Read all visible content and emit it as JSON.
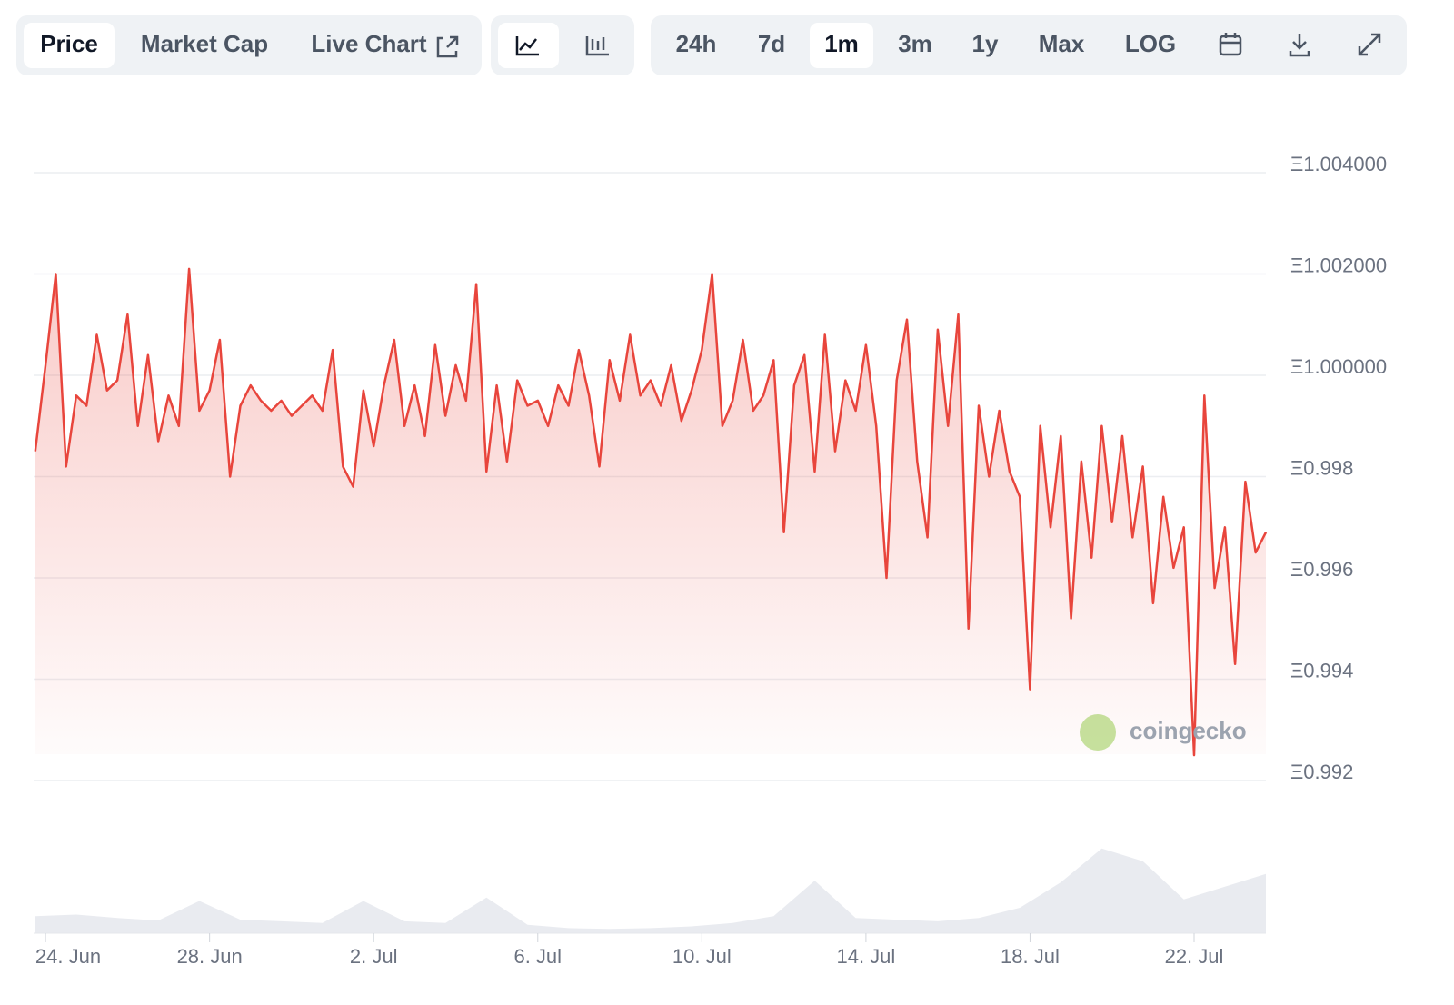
{
  "toolbar": {
    "tabs": [
      "Price",
      "Market Cap",
      "Live Chart"
    ],
    "ranges": [
      "24h",
      "7d",
      "1m",
      "3m",
      "1y",
      "Max",
      "LOG"
    ],
    "active_tab": "Price",
    "active_range": "1m"
  },
  "chart_data": {
    "type": "line",
    "color": "#e8453c",
    "x": [
      -0.25,
      0,
      0.25,
      0.5,
      0.75,
      1,
      1.25,
      1.5,
      1.75,
      2,
      2.25,
      2.5,
      2.75,
      3,
      3.25,
      3.5,
      3.75,
      4,
      4.25,
      4.5,
      4.75,
      5,
      5.25,
      5.5,
      5.75,
      6,
      6.25,
      6.5,
      6.75,
      7,
      7.25,
      7.5,
      7.75,
      8,
      8.25,
      8.5,
      8.75,
      9,
      9.25,
      9.5,
      9.75,
      10,
      10.25,
      10.5,
      10.75,
      11,
      11.25,
      11.5,
      11.75,
      12,
      12.25,
      12.5,
      12.75,
      13,
      13.25,
      13.5,
      13.75,
      14,
      14.25,
      14.5,
      14.75,
      15,
      15.25,
      15.5,
      15.75,
      16,
      16.25,
      16.5,
      16.75,
      17,
      17.25,
      17.5,
      17.75,
      18,
      18.25,
      18.5,
      18.75,
      19,
      19.25,
      19.5,
      19.75,
      20,
      20.25,
      20.5,
      20.75,
      21,
      21.25,
      21.5,
      21.75,
      22,
      22.25,
      22.5,
      22.75,
      23,
      23.25,
      23.5,
      23.75,
      24,
      24.25,
      24.5,
      24.75,
      25,
      25.25,
      25.5,
      25.75,
      26,
      26.25,
      26.5,
      26.75,
      27,
      27.25,
      27.5,
      27.75,
      28,
      28.25,
      28.5,
      28.75,
      29,
      29.25,
      29.5,
      29.75
    ],
    "values": [
      0.9985,
      1.0002,
      1.002,
      0.9982,
      0.9996,
      0.9994,
      1.0008,
      0.9997,
      0.9999,
      1.0012,
      0.999,
      1.0004,
      0.9987,
      0.9996,
      0.999,
      1.0021,
      0.9993,
      0.9997,
      1.0007,
      0.998,
      0.9994,
      0.9998,
      0.9995,
      0.9993,
      0.9995,
      0.9992,
      0.9994,
      0.9996,
      0.9993,
      1.0005,
      0.9982,
      0.9978,
      0.9997,
      0.9986,
      0.9998,
      1.0007,
      0.999,
      0.9998,
      0.9988,
      1.0006,
      0.9992,
      1.0002,
      0.9995,
      1.0018,
      0.9981,
      0.9998,
      0.9983,
      0.9999,
      0.9994,
      0.9995,
      0.999,
      0.9998,
      0.9994,
      1.0005,
      0.9996,
      0.9982,
      1.0003,
      0.9995,
      1.0008,
      0.9996,
      0.9999,
      0.9994,
      1.0002,
      0.9991,
      0.9997,
      1.0005,
      1.002,
      0.999,
      0.9995,
      1.0007,
      0.9993,
      0.9996,
      1.0003,
      0.9969,
      0.9998,
      1.0004,
      0.9981,
      1.0008,
      0.9985,
      0.9999,
      0.9993,
      1.0006,
      0.999,
      0.996,
      0.9999,
      1.0011,
      0.9983,
      0.9968,
      1.0009,
      0.999,
      1.0012,
      0.995,
      0.9994,
      0.998,
      0.9993,
      0.9981,
      0.9976,
      0.9938,
      0.999,
      0.997,
      0.9988,
      0.9952,
      0.9983,
      0.9964,
      0.999,
      0.9971,
      0.9988,
      0.9968,
      0.9982,
      0.9955,
      0.9976,
      0.9962,
      0.997,
      0.9925,
      0.9996,
      0.9958,
      0.997,
      0.9943,
      0.9979,
      0.9965,
      0.9969
    ],
    "xlim": [
      -0.29,
      29.75
    ],
    "xticks": [
      {
        "value": 0,
        "label": "24. Jun"
      },
      {
        "value": 4,
        "label": "28. Jun"
      },
      {
        "value": 8,
        "label": "2. Jul"
      },
      {
        "value": 12,
        "label": "6. Jul"
      },
      {
        "value": 16,
        "label": "10. Jul"
      },
      {
        "value": 20,
        "label": "14. Jul"
      },
      {
        "value": 24,
        "label": "18. Jul"
      },
      {
        "value": 28,
        "label": "22. Jul"
      }
    ],
    "ylim": [
      0.992,
      1.004
    ],
    "yticks": [
      {
        "value": 0.992,
        "label": "Ξ0.992"
      },
      {
        "value": 0.994,
        "label": "Ξ0.994"
      },
      {
        "value": 0.996,
        "label": "Ξ0.996"
      },
      {
        "value": 0.998,
        "label": "Ξ0.998"
      },
      {
        "value": 1.0,
        "label": "Ξ1.000000"
      },
      {
        "value": 1.002,
        "label": "Ξ1.002000"
      },
      {
        "value": 1.004,
        "label": "Ξ1.004000"
      }
    ],
    "grid": true,
    "volume": {
      "x": [
        -0.25,
        0.75,
        1.75,
        2.75,
        3.75,
        4.75,
        5.75,
        6.75,
        7.75,
        8.75,
        9.75,
        10.75,
        11.75,
        12.75,
        13.75,
        14.75,
        15.75,
        16.75,
        17.75,
        18.75,
        19.75,
        20.75,
        21.75,
        22.75,
        23.75,
        24.75,
        25.75,
        26.75,
        27.75,
        28.75,
        29.75
      ],
      "values": [
        20,
        22,
        18,
        15,
        38,
        16,
        14,
        12,
        38,
        14,
        12,
        42,
        10,
        6,
        5,
        6,
        8,
        12,
        20,
        62,
        18,
        16,
        14,
        18,
        30,
        60,
        100,
        85,
        40,
        55,
        70
      ],
      "ylim": [
        0,
        120
      ],
      "color": "#e9ebf0"
    },
    "watermark": "coingecko"
  }
}
